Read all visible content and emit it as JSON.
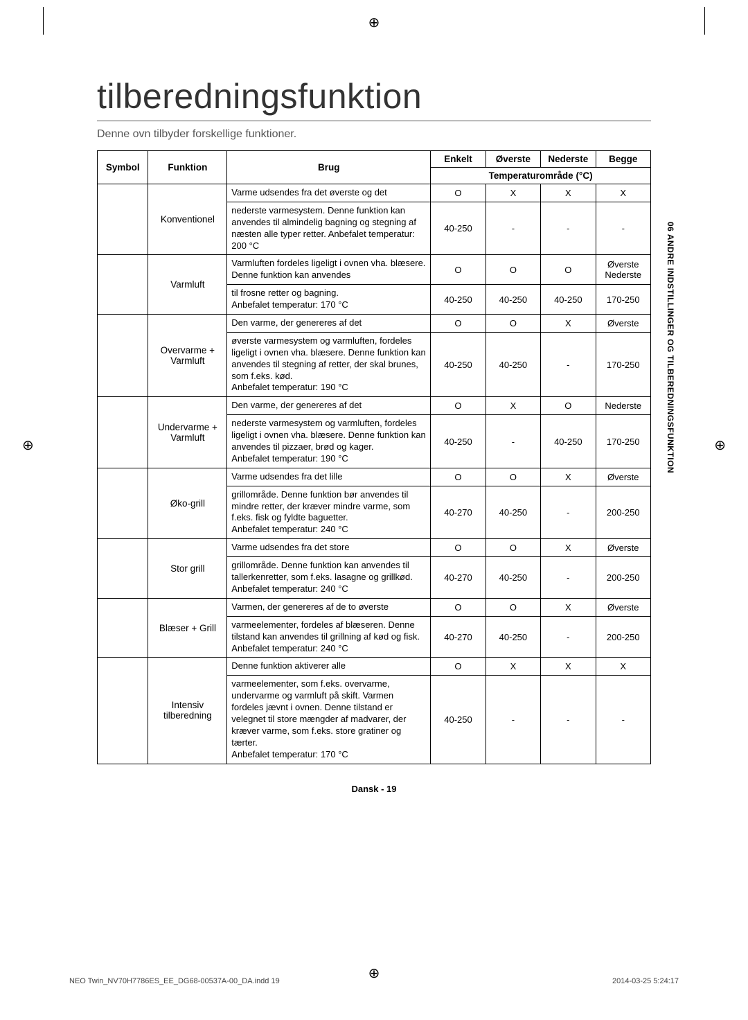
{
  "title": "tilberedningsfunktion",
  "intro": "Denne ovn tilbyder forskellige funktioner.",
  "side_tab": "06  ANDRE INDSTILLINGER OG TILBEREDNINGSFUNKTION",
  "footer_page": "Dansk - 19",
  "print_footer_left": "NEO Twin_NV70H7786ES_EE_DG68-00537A-00_DA.indd   19",
  "print_footer_right": "2014-03-25   5:24:17",
  "headers": {
    "symbol": "Symbol",
    "funktion": "Funktion",
    "brug": "Brug",
    "enkelt": "Enkelt",
    "overste": "Øverste",
    "nederste": "Nederste",
    "begge": "Begge",
    "temp_range": "Temperaturområde (°C)"
  },
  "rows": [
    {
      "funktion": "Konventionel",
      "use1": "Varme udsendes fra det øverste og det",
      "use2": "nederste varmesystem. Denne funktion kan anvendes til almindelig bagning og stegning af næsten alle typer retter. Anbefalet temperatur: 200 °C",
      "r1": [
        "O",
        "X",
        "X",
        "X"
      ],
      "r2": [
        "40-250",
        "-",
        "-",
        "-"
      ]
    },
    {
      "funktion": "Varmluft",
      "use1": "Varmluften fordeles ligeligt i ovnen vha. blæsere. Denne funktion kan anvendes",
      "use2": "til frosne retter og bagning.\nAnbefalet temperatur: 170 °C",
      "r1": [
        "O",
        "O",
        "O",
        "Øverste Nederste"
      ],
      "r2": [
        "40-250",
        "40-250",
        "40-250",
        "170-250"
      ]
    },
    {
      "funktion": "Overvarme + Varmluft",
      "use1": "Den varme, der genereres af det",
      "use2": "øverste varmesystem og varmluften, fordeles ligeligt i ovnen vha. blæsere. Denne funktion kan anvendes til stegning af retter, der skal brunes, som f.eks. kød.\nAnbefalet temperatur: 190 °C",
      "r1": [
        "O",
        "O",
        "X",
        "Øverste"
      ],
      "r2": [
        "40-250",
        "40-250",
        "-",
        "170-250"
      ]
    },
    {
      "funktion": "Undervarme + Varmluft",
      "use1": "Den varme, der genereres af det",
      "use2": "nederste varmesystem og varmluften, fordeles ligeligt i ovnen vha. blæsere. Denne funktion kan anvendes til pizzaer, brød og kager.\nAnbefalet temperatur: 190 °C",
      "r1": [
        "O",
        "X",
        "O",
        "Nederste"
      ],
      "r2": [
        "40-250",
        "-",
        "40-250",
        "170-250"
      ]
    },
    {
      "funktion": "Øko-grill",
      "use1": "Varme udsendes fra det lille",
      "use2": "grillområde. Denne funktion bør anvendes til mindre retter, der kræver mindre varme, som f.eks. fisk og fyldte baguetter.\nAnbefalet temperatur: 240 °C",
      "r1": [
        "O",
        "O",
        "X",
        "Øverste"
      ],
      "r2": [
        "40-270",
        "40-250",
        "-",
        "200-250"
      ]
    },
    {
      "funktion": "Stor grill",
      "use1": "Varme udsendes fra det store",
      "use2": "grillområde. Denne funktion kan anvendes til tallerkenretter, som f.eks. lasagne og grillkød.\nAnbefalet temperatur: 240 °C",
      "r1": [
        "O",
        "O",
        "X",
        "Øverste"
      ],
      "r2": [
        "40-270",
        "40-250",
        "-",
        "200-250"
      ]
    },
    {
      "funktion": "Blæser + Grill",
      "use1": "Varmen, der genereres af de to øverste",
      "use2": "varmeelementer, fordeles af blæseren. Denne tilstand kan anvendes til grillning af kød og fisk.\nAnbefalet temperatur: 240 °C",
      "r1": [
        "O",
        "O",
        "X",
        "Øverste"
      ],
      "r2": [
        "40-270",
        "40-250",
        "-",
        "200-250"
      ]
    },
    {
      "funktion": "Intensiv tilberedning",
      "use1": "Denne funktion aktiverer alle",
      "use2": "varmeelementer, som f.eks. overvarme, undervarme og varmluft på skift. Varmen fordeles jævnt i ovnen. Denne tilstand er velegnet til store mængder af madvarer, der kræver varme, som f.eks. store gratiner og tærter.\nAnbefalet temperatur: 170 °C",
      "r1": [
        "O",
        "X",
        "X",
        "X"
      ],
      "r2": [
        "40-250",
        "-",
        "-",
        "-"
      ]
    }
  ]
}
